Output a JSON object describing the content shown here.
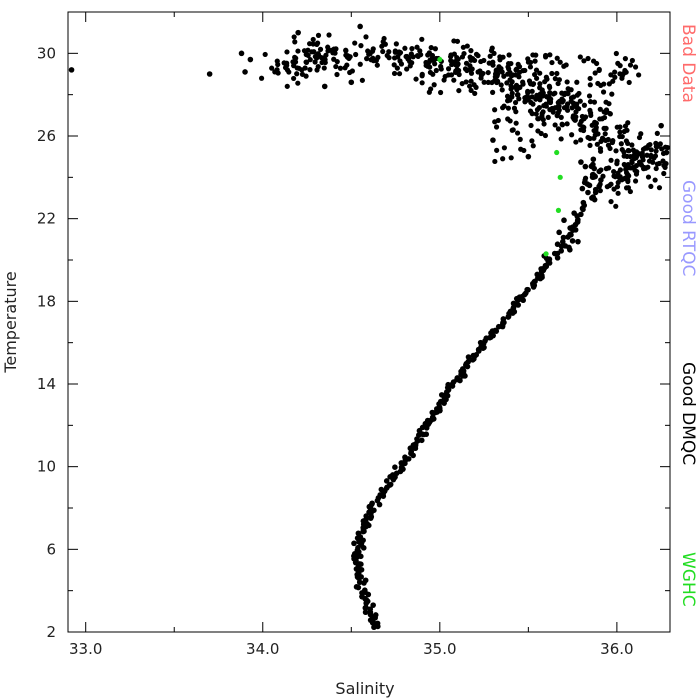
{
  "chart_data": {
    "type": "scatter",
    "title": "",
    "xlabel": "Salinity",
    "ylabel": "Temperature",
    "xlim": [
      32.9,
      36.3
    ],
    "ylim": [
      2,
      32
    ],
    "xticks": [
      33.0,
      34.0,
      35.0,
      36.0
    ],
    "xtick_labels": [
      "33.0",
      "34.0",
      "35.0",
      "36.0"
    ],
    "yticks": [
      2,
      6,
      10,
      14,
      18,
      22,
      26,
      30
    ],
    "ytick_labels": [
      "2",
      "6",
      "10",
      "14",
      "18",
      "22",
      "26",
      "30"
    ],
    "grid": false,
    "legend_position": "right-vertical",
    "legend": [
      {
        "label": "Bad Data",
        "color": "#ff6b6b"
      },
      {
        "label": "Good RTQC",
        "color": "#9999ff"
      },
      {
        "label": "Good DMQC",
        "color": "#000000"
      },
      {
        "label": "WGHC",
        "color": "#22dd22"
      }
    ],
    "series": [
      {
        "name": "Good DMQC",
        "color": "#000000",
        "profile": [
          [
            34.64,
            2.2
          ],
          [
            34.6,
            3.0
          ],
          [
            34.56,
            4.0
          ],
          [
            34.54,
            5.0
          ],
          [
            34.54,
            6.0
          ],
          [
            34.57,
            7.0
          ],
          [
            34.62,
            8.0
          ],
          [
            34.7,
            9.0
          ],
          [
            34.78,
            10.0
          ],
          [
            34.86,
            11.0
          ],
          [
            34.93,
            12.0
          ],
          [
            35.0,
            13.0
          ],
          [
            35.08,
            14.0
          ],
          [
            35.16,
            15.0
          ],
          [
            35.25,
            16.0
          ],
          [
            35.35,
            17.0
          ],
          [
            35.45,
            18.0
          ],
          [
            35.55,
            19.0
          ],
          [
            35.63,
            20.0
          ],
          [
            35.72,
            21.0
          ],
          [
            35.78,
            22.0
          ],
          [
            35.85,
            23.5
          ],
          [
            35.85,
            25.0
          ]
        ],
        "cloud": [
          [
            35.95,
            23.5
          ],
          [
            36.1,
            24.5
          ],
          [
            36.2,
            25.0
          ],
          [
            35.95,
            26.0
          ],
          [
            35.8,
            27.0
          ],
          [
            35.6,
            28.0
          ],
          [
            35.4,
            28.8
          ],
          [
            35.2,
            29.5
          ],
          [
            34.9,
            29.8
          ],
          [
            34.6,
            30.0
          ],
          [
            34.3,
            29.8
          ],
          [
            34.1,
            29.3
          ]
        ],
        "outliers": [
          [
            32.92,
            29.2
          ],
          [
            33.7,
            29.0
          ],
          [
            33.88,
            30.0
          ],
          [
            33.93,
            29.7
          ],
          [
            33.9,
            29.1
          ],
          [
            34.2,
            31.0
          ],
          [
            34.55,
            31.3
          ],
          [
            34.35,
            28.4
          ],
          [
            34.5,
            28.6
          ],
          [
            35.3,
            25.8
          ],
          [
            35.5,
            25.0
          ],
          [
            35.55,
            19.3
          ],
          [
            35.45,
            18.2
          ],
          [
            36.25,
            26.5
          ],
          [
            36.28,
            25.2
          ]
        ]
      },
      {
        "name": "WGHC",
        "color": "#22dd22",
        "points": [
          [
            35.0,
            29.7
          ],
          [
            35.68,
            24.0
          ],
          [
            35.67,
            22.4
          ],
          [
            35.6,
            20.3
          ],
          [
            35.66,
            25.2
          ]
        ]
      }
    ]
  }
}
